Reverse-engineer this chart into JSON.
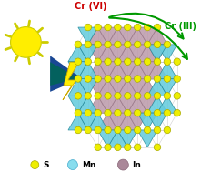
{
  "bg_color": "#ffffff",
  "cr6_label": "Cr (VI)",
  "cr3_label": "Cr (III)",
  "cr6_color": "#cc0000",
  "cr3_color": "#009900",
  "legend_items": [
    {
      "label": "S",
      "color": "#eeee00",
      "edge": "#aaaa00"
    },
    {
      "label": "Mn",
      "color": "#88ddee",
      "edge": "#44aacc"
    },
    {
      "label": "In",
      "color": "#aa8899",
      "edge": "#886677"
    }
  ],
  "sun_color": "#ffee00",
  "sun_ray_color": "#cccc00",
  "tetra_cyan_color": "#66ccdd",
  "tetra_cyan_edge": "#228899",
  "tetra_purple_color": "#bb99aa",
  "tetra_purple_edge": "#997788",
  "s_atom_color": "#eeee00",
  "s_atom_edge": "#aaaa00",
  "arrow_color": "#009900",
  "line_color": "#bbbbbb"
}
